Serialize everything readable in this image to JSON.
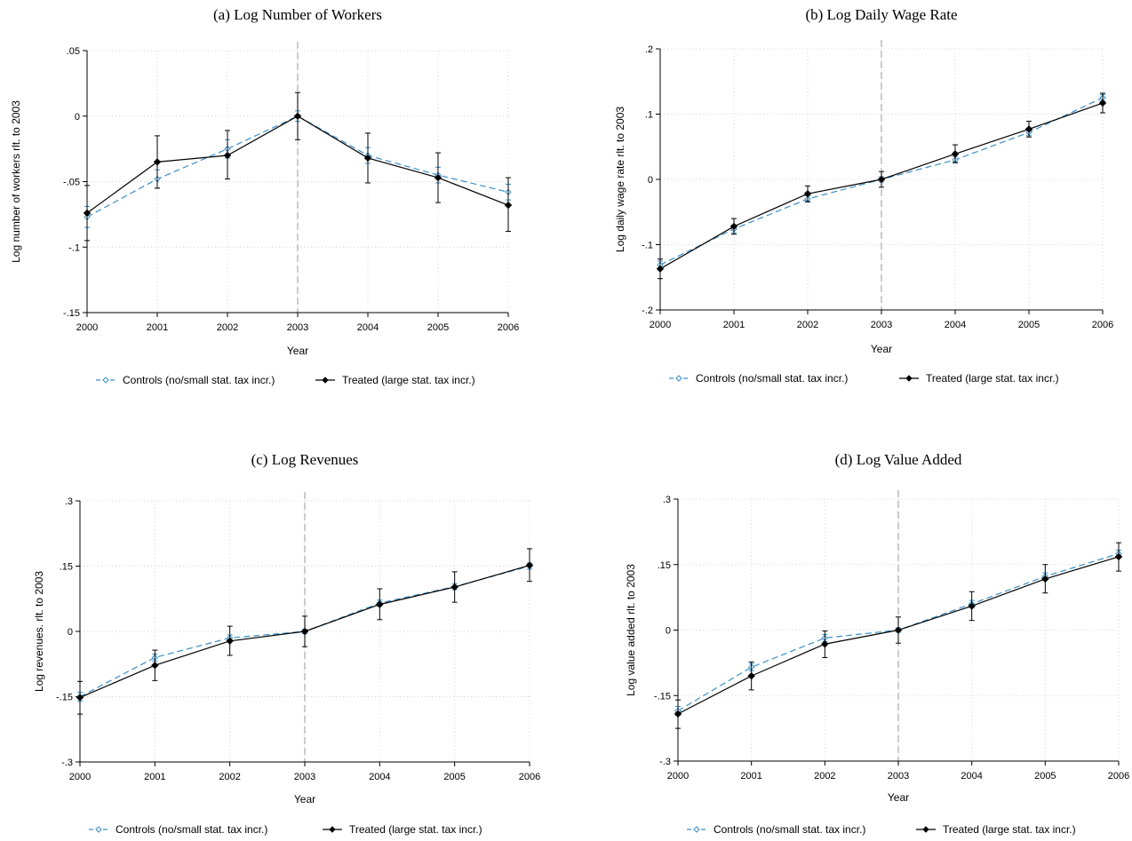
{
  "chart_data": [
    {
      "type": "line",
      "title": "(a)  Log Number of Workers",
      "xlabel": "Year",
      "ylabel": "Log number of workers rlt. to 2003",
      "x": [
        "2000",
        "2001",
        "2002",
        "2003",
        "2004",
        "2005",
        "2006"
      ],
      "ylim": [
        -0.15,
        0.05
      ],
      "yticks": [
        0.05,
        0,
        -0.05,
        -0.1,
        -0.15
      ],
      "ytick_labels": [
        ".05",
        "0",
        "-.05",
        "-.1",
        "-.15"
      ],
      "reference_line_x": "2003",
      "grid": true,
      "legend_position": "bottom",
      "series": [
        {
          "name": "Controls (no/small stat. tax incr.)",
          "color": "#3a8fc6",
          "style": "dashed",
          "marker": "hollow-diamond",
          "values": [
            -0.077,
            -0.048,
            -0.025,
            0,
            -0.03,
            -0.045,
            -0.058
          ],
          "ci_low": [
            -0.085,
            -0.055,
            -0.032,
            -0.004,
            -0.036,
            -0.051,
            -0.064
          ],
          "ci_high": [
            -0.069,
            -0.041,
            -0.018,
            0.004,
            -0.024,
            -0.039,
            -0.052
          ]
        },
        {
          "name": "Treated (large stat. tax incr.)",
          "color": "#000000",
          "style": "solid",
          "marker": "filled-diamond",
          "values": [
            -0.074,
            -0.035,
            -0.03,
            0,
            -0.032,
            -0.047,
            -0.068
          ],
          "ci_low": [
            -0.095,
            -0.055,
            -0.048,
            -0.018,
            -0.051,
            -0.066,
            -0.088
          ],
          "ci_high": [
            -0.053,
            -0.015,
            -0.011,
            0.018,
            -0.013,
            -0.028,
            -0.047
          ]
        }
      ]
    },
    {
      "type": "line",
      "title": "(b) Log Daily Wage Rate",
      "xlabel": "Year",
      "ylabel": "Log daily wage rate rlt. to 2003",
      "x": [
        "2000",
        "2001",
        "2002",
        "2003",
        "2004",
        "2005",
        "2006"
      ],
      "ylim": [
        -0.2,
        0.2
      ],
      "yticks": [
        0.2,
        0.1,
        0,
        -0.1,
        -0.2
      ],
      "ytick_labels": [
        ".2",
        ".1",
        "0",
        "-.1",
        "-.2"
      ],
      "reference_line_x": "2003",
      "grid": true,
      "legend_position": "bottom",
      "series": [
        {
          "name": "Controls (no/small stat. tax incr.)",
          "color": "#3a8fc6",
          "style": "dashed",
          "marker": "hollow-diamond",
          "values": [
            -0.131,
            -0.076,
            -0.03,
            0,
            0.03,
            0.072,
            0.125
          ],
          "ci_low": [
            -0.137,
            -0.082,
            -0.035,
            -0.004,
            0.025,
            0.067,
            0.12
          ],
          "ci_high": [
            -0.125,
            -0.07,
            -0.025,
            0.004,
            0.035,
            0.077,
            0.13
          ]
        },
        {
          "name": "Treated (large stat. tax incr.)",
          "color": "#000000",
          "style": "solid",
          "marker": "filled-diamond",
          "values": [
            -0.137,
            -0.072,
            -0.022,
            0,
            0.039,
            0.077,
            0.117
          ],
          "ci_low": [
            -0.152,
            -0.084,
            -0.034,
            -0.012,
            0.026,
            0.065,
            0.102
          ],
          "ci_high": [
            -0.122,
            -0.06,
            -0.01,
            0.012,
            0.053,
            0.089,
            0.132
          ]
        }
      ]
    },
    {
      "type": "line",
      "title": "(c) Log Revenues",
      "xlabel": "Year",
      "ylabel": "Log revenues. rlt. to 2003",
      "x": [
        "2000",
        "2001",
        "2002",
        "2003",
        "2004",
        "2005",
        "2006"
      ],
      "ylim": [
        -0.3,
        0.3
      ],
      "yticks": [
        0.3,
        0.15,
        0,
        -0.15,
        -0.3
      ],
      "ytick_labels": [
        ".3",
        ".15",
        "0",
        "-.15",
        "-.3"
      ],
      "reference_line_x": "2003",
      "grid": true,
      "legend_position": "bottom",
      "series": [
        {
          "name": "Controls (no/small stat. tax incr.)",
          "color": "#3a8fc6",
          "style": "dashed",
          "marker": "hollow-diamond",
          "values": [
            -0.15,
            -0.06,
            -0.015,
            0,
            0.065,
            0.103,
            0.15
          ],
          "ci_low": [
            -0.16,
            -0.068,
            -0.022,
            -0.005,
            0.058,
            0.096,
            0.143
          ],
          "ci_high": [
            -0.14,
            -0.052,
            -0.008,
            0.005,
            0.072,
            0.11,
            0.157
          ]
        },
        {
          "name": "Treated (large stat. tax incr.)",
          "color": "#000000",
          "style": "solid",
          "marker": "filled-diamond",
          "values": [
            -0.152,
            -0.078,
            -0.022,
            0,
            0.062,
            0.102,
            0.152
          ],
          "ci_low": [
            -0.19,
            -0.113,
            -0.055,
            -0.035,
            0.027,
            0.067,
            0.115
          ],
          "ci_high": [
            -0.115,
            -0.043,
            0.012,
            0.035,
            0.098,
            0.137,
            0.19
          ]
        }
      ]
    },
    {
      "type": "line",
      "title": "(d) Log Value Added",
      "xlabel": "Year",
      "ylabel": "Log value added rlt. to 2003",
      "x": [
        "2000",
        "2001",
        "2002",
        "2003",
        "2004",
        "2005",
        "2006"
      ],
      "ylim": [
        -0.3,
        0.3
      ],
      "yticks": [
        0.3,
        0.15,
        0,
        -0.15,
        -0.3
      ],
      "ytick_labels": [
        ".3",
        ".15",
        "0",
        "-.15",
        "-.3"
      ],
      "reference_line_x": "2003",
      "grid": true,
      "legend_position": "bottom",
      "series": [
        {
          "name": "Controls (no/small stat. tax incr.)",
          "color": "#3a8fc6",
          "style": "dashed",
          "marker": "hollow-diamond",
          "values": [
            -0.185,
            -0.085,
            -0.018,
            0,
            0.06,
            0.123,
            0.175
          ],
          "ci_low": [
            -0.195,
            -0.093,
            -0.026,
            -0.005,
            0.052,
            0.115,
            0.167
          ],
          "ci_high": [
            -0.175,
            -0.077,
            -0.01,
            0.005,
            0.068,
            0.131,
            0.183
          ]
        },
        {
          "name": "Treated (large stat. tax incr.)",
          "color": "#000000",
          "style": "solid",
          "marker": "filled-diamond",
          "values": [
            -0.192,
            -0.105,
            -0.032,
            0,
            0.055,
            0.117,
            0.168
          ],
          "ci_low": [
            -0.225,
            -0.137,
            -0.063,
            -0.03,
            0.022,
            0.085,
            0.135
          ],
          "ci_high": [
            -0.16,
            -0.073,
            -0.002,
            0.03,
            0.088,
            0.15,
            0.2
          ]
        }
      ]
    }
  ]
}
